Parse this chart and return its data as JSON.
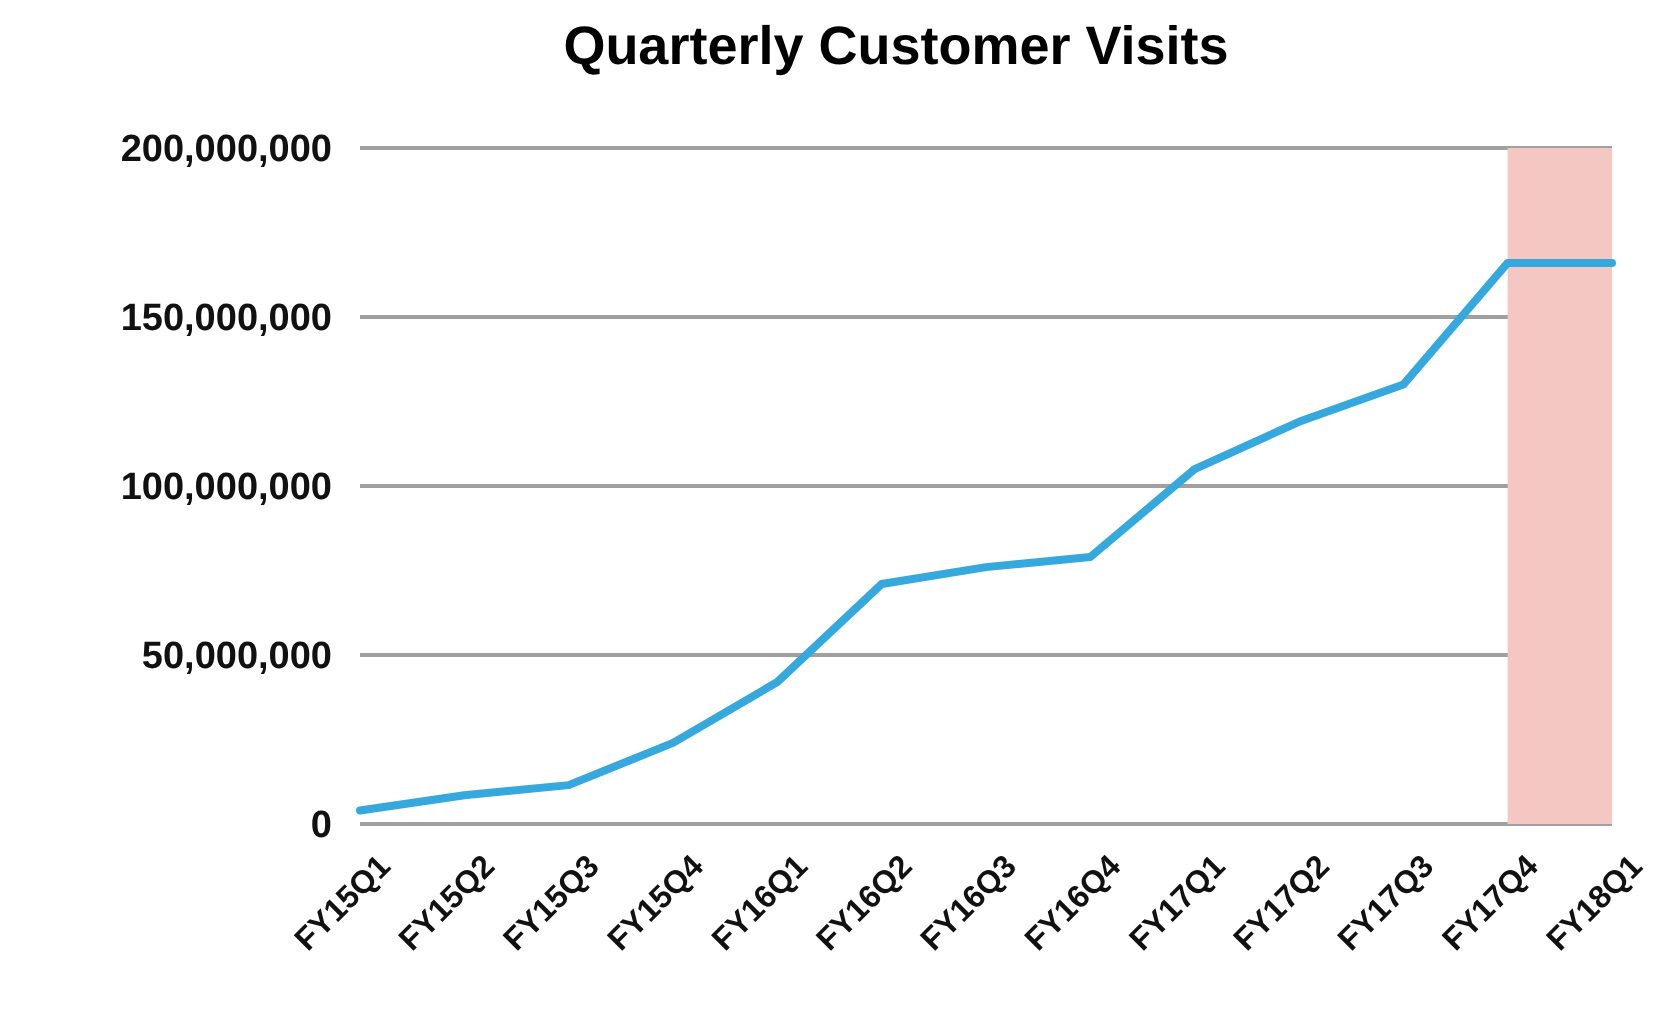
{
  "chart_data": {
    "type": "line",
    "title": "Quarterly Customer Visits",
    "categories": [
      "FY15Q1",
      "FY15Q2",
      "FY15Q3",
      "FY15Q4",
      "FY16Q1",
      "FY16Q2",
      "FY16Q3",
      "FY16Q4",
      "FY17Q1",
      "FY17Q2",
      "FY17Q3",
      "FY17Q4",
      "FY18Q1"
    ],
    "series": [
      {
        "color": "#35a9de",
        "values": [
          4000000,
          8500000,
          11500000,
          24000000,
          42000000,
          71000000,
          76000000,
          79000000,
          105000000,
          119000000,
          130000000,
          166000000,
          166000000
        ]
      }
    ],
    "ylim": [
      0,
      200000000
    ],
    "yticks": [
      0,
      {
        "value": 50000000,
        "label": "50,000,000"
      },
      {
        "value": 100000000,
        "label": "100,000,000"
      },
      {
        "value": 150000000,
        "label": "150,000,000"
      },
      {
        "value": 200000000,
        "label": "200,000,000"
      }
    ],
    "grid": "y",
    "legend": false,
    "marker": "none",
    "line_style": "solid",
    "bands": [
      {
        "axis": "x",
        "from": "FY17Q4",
        "to": "FY18Q1",
        "color": "#f4c7c3"
      }
    ]
  }
}
